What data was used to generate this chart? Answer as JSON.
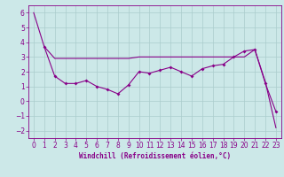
{
  "xlabel": "Windchill (Refroidissement éolien,°C)",
  "ylabel": "",
  "xlim": [
    -0.5,
    23.5
  ],
  "ylim": [
    -2.5,
    6.5
  ],
  "yticks": [
    -2,
    -1,
    0,
    1,
    2,
    3,
    4,
    5,
    6
  ],
  "xticks": [
    0,
    1,
    2,
    3,
    4,
    5,
    6,
    7,
    8,
    9,
    10,
    11,
    12,
    13,
    14,
    15,
    16,
    17,
    18,
    19,
    20,
    21,
    22,
    23
  ],
  "bg_color": "#cce8e8",
  "line_color": "#880088",
  "grid_color": "#aacccc",
  "line1_x": [
    0,
    1,
    2,
    3,
    4,
    5,
    6,
    7,
    8,
    9,
    10,
    11,
    12,
    13,
    14,
    15,
    16,
    17,
    18,
    19,
    20,
    21,
    22,
    23
  ],
  "line1_y": [
    6.0,
    3.7,
    2.9,
    2.9,
    2.9,
    2.9,
    2.9,
    2.9,
    2.9,
    2.9,
    3.0,
    3.0,
    3.0,
    3.0,
    3.0,
    3.0,
    3.0,
    3.0,
    3.0,
    3.0,
    3.0,
    3.5,
    1.3,
    -1.8
  ],
  "line2_x": [
    1,
    2,
    3,
    4,
    5,
    6,
    7,
    8,
    9,
    10,
    11,
    12,
    13,
    14,
    15,
    16,
    17,
    18,
    19,
    20,
    21,
    22,
    23
  ],
  "line2_y": [
    3.7,
    1.7,
    1.2,
    1.2,
    1.4,
    1.0,
    0.8,
    0.5,
    1.1,
    2.0,
    1.9,
    2.1,
    2.3,
    2.0,
    1.7,
    2.2,
    2.4,
    2.5,
    3.0,
    3.4,
    3.5,
    1.2,
    -0.7
  ],
  "tick_fontsize": 5.5,
  "xlabel_fontsize": 5.5
}
